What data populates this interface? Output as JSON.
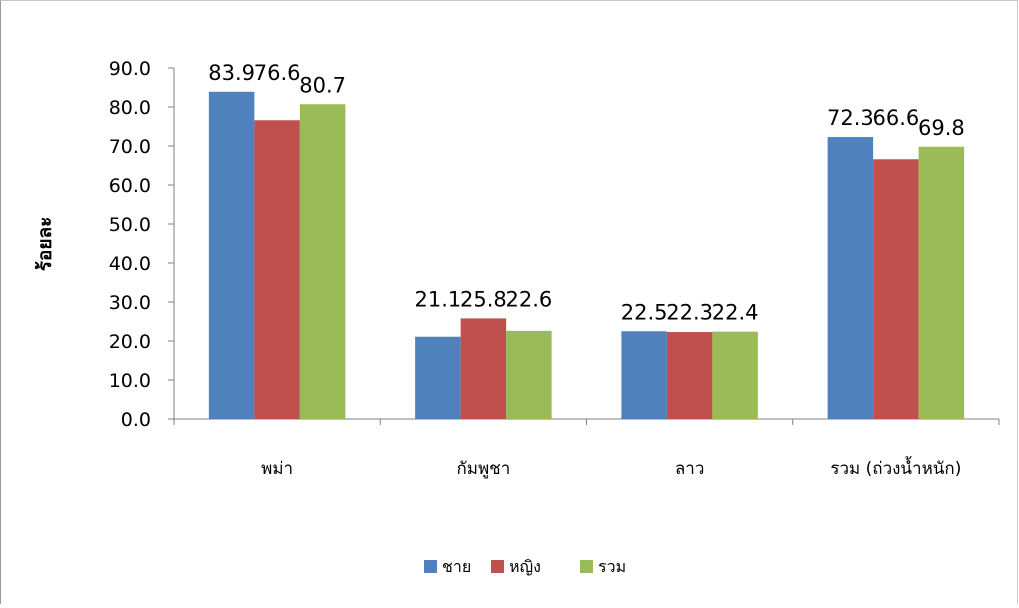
{
  "chart_data": {
    "type": "bar",
    "title": "",
    "xlabel": "",
    "ylabel": "ร้อยละ",
    "ylim": [
      0,
      90
    ],
    "yticks": [
      "0.0",
      "10.0",
      "20.0",
      "30.0",
      "40.0",
      "50.0",
      "60.0",
      "70.0",
      "80.0",
      "90.0"
    ],
    "categories": [
      "พม่า",
      "กัมพูชา",
      "ลาว",
      "รวม (ถ่วงน้ำหนัก)"
    ],
    "series": [
      {
        "name": "ชาย",
        "color": "#4F81BD",
        "values": [
          83.9,
          21.1,
          22.5,
          72.3
        ],
        "labels": [
          "83.9",
          "21.1",
          "22.5",
          "72.3"
        ]
      },
      {
        "name": "หญิง",
        "color": "#C0504D",
        "values": [
          76.6,
          25.8,
          22.3,
          66.6
        ],
        "labels": [
          "76.6",
          "25.8",
          "22.3",
          "66.6"
        ]
      },
      {
        "name": "รวม",
        "color": "#9BBB59",
        "values": [
          80.7,
          22.6,
          22.4,
          69.8
        ],
        "labels": [
          "80.7",
          "22.6",
          "22.4",
          "69.8"
        ]
      }
    ],
    "grid": false,
    "legend_position": "bottom"
  }
}
